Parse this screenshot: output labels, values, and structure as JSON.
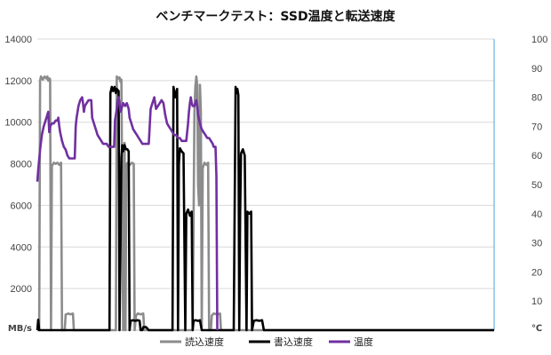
{
  "chart_data": {
    "type": "line",
    "title": "ベンチマークテスト：SSD温度と転送速度",
    "ylabel": "MB/s",
    "y2label": "℃",
    "ylim": [
      0,
      14000
    ],
    "y2lim": [
      0,
      100
    ],
    "xlim": [
      0,
      1000
    ],
    "yticks": [
      "2000",
      "4000",
      "6000",
      "8000",
      "10000",
      "12000",
      "14000"
    ],
    "y2ticks": [
      "10",
      "20",
      "30",
      "40",
      "50",
      "60",
      "70",
      "80",
      "90",
      "100"
    ],
    "grid": true,
    "legend_position": "bottom",
    "series": [
      {
        "name": "読込速度",
        "color": "#8c8c8c",
        "axis": "left",
        "points": [
          [
            0,
            0
          ],
          [
            4,
            0
          ],
          [
            6,
            12000
          ],
          [
            8,
            12200
          ],
          [
            12,
            12050
          ],
          [
            16,
            12200
          ],
          [
            20,
            12100
          ],
          [
            22,
            12200
          ],
          [
            24,
            12000
          ],
          [
            27,
            12100
          ],
          [
            28,
            12050
          ],
          [
            30,
            0
          ],
          [
            32,
            7900
          ],
          [
            36,
            8050
          ],
          [
            40,
            8000
          ],
          [
            44,
            8050
          ],
          [
            48,
            7950
          ],
          [
            52,
            8050
          ],
          [
            54,
            0
          ],
          [
            60,
            0
          ],
          [
            62,
            750
          ],
          [
            68,
            800
          ],
          [
            72,
            760
          ],
          [
            78,
            800
          ],
          [
            80,
            0
          ],
          [
            168,
            0
          ],
          [
            172,
            0
          ],
          [
            174,
            12200
          ],
          [
            178,
            12100
          ],
          [
            180,
            12150
          ],
          [
            182,
            11950
          ],
          [
            184,
            12050
          ],
          [
            188,
            0
          ],
          [
            189,
            6000
          ],
          [
            191,
            9000
          ],
          [
            193,
            0
          ],
          [
            195,
            8000
          ],
          [
            199,
            8050
          ],
          [
            203,
            7950
          ],
          [
            207,
            8050
          ],
          [
            211,
            8000
          ],
          [
            213,
            0
          ],
          [
            216,
            700
          ],
          [
            220,
            800
          ],
          [
            226,
            760
          ],
          [
            232,
            800
          ],
          [
            234,
            0
          ],
          [
            340,
            0
          ],
          [
            344,
            10500
          ],
          [
            346,
            11700
          ],
          [
            348,
            12200
          ],
          [
            350,
            11800
          ],
          [
            352,
            7000
          ],
          [
            354,
            6000
          ],
          [
            356,
            11800
          ],
          [
            358,
            10500
          ],
          [
            360,
            0
          ],
          [
            362,
            7800
          ],
          [
            366,
            8050
          ],
          [
            370,
            7950
          ],
          [
            374,
            8050
          ],
          [
            376,
            0
          ],
          [
            380,
            0
          ],
          [
            382,
            700
          ],
          [
            386,
            800
          ],
          [
            394,
            760
          ],
          [
            400,
            800
          ],
          [
            402,
            0
          ],
          [
            1000,
            0
          ]
        ]
      },
      {
        "name": "書込速度",
        "color": "#000000",
        "axis": "left",
        "points": [
          [
            0,
            0
          ],
          [
            2,
            500
          ],
          [
            4,
            0
          ],
          [
            154,
            0
          ],
          [
            158,
            0
          ],
          [
            160,
            11400
          ],
          [
            163,
            11700
          ],
          [
            166,
            11500
          ],
          [
            169,
            11700
          ],
          [
            172,
            11400
          ],
          [
            174,
            11600
          ],
          [
            178,
            11500
          ],
          [
            180,
            0
          ],
          [
            184,
            8300
          ],
          [
            186,
            8900
          ],
          [
            188,
            8600
          ],
          [
            191,
            8900
          ],
          [
            194,
            8700
          ],
          [
            197,
            8700
          ],
          [
            200,
            8600
          ],
          [
            202,
            0
          ],
          [
            204,
            450
          ],
          [
            210,
            480
          ],
          [
            214,
            450
          ],
          [
            220,
            480
          ],
          [
            224,
            450
          ],
          [
            226,
            0
          ],
          [
            230,
            0
          ],
          [
            232,
            150
          ],
          [
            238,
            150
          ],
          [
            244,
            0
          ],
          [
            292,
            0
          ],
          [
            296,
            0
          ],
          [
            298,
            11700
          ],
          [
            302,
            11200
          ],
          [
            306,
            11600
          ],
          [
            308,
            0
          ],
          [
            310,
            8000
          ],
          [
            312,
            8750
          ],
          [
            316,
            8600
          ],
          [
            320,
            8500
          ],
          [
            324,
            0
          ],
          [
            326,
            5600
          ],
          [
            330,
            5800
          ],
          [
            334,
            5500
          ],
          [
            338,
            5700
          ],
          [
            340,
            0
          ],
          [
            342,
            450
          ],
          [
            346,
            480
          ],
          [
            352,
            450
          ],
          [
            356,
            480
          ],
          [
            360,
            0
          ],
          [
            430,
            0
          ],
          [
            434,
            11700
          ],
          [
            436,
            11400
          ],
          [
            438,
            11600
          ],
          [
            440,
            11300
          ],
          [
            442,
            0
          ],
          [
            444,
            5500
          ],
          [
            446,
            8500
          ],
          [
            450,
            8700
          ],
          [
            454,
            8400
          ],
          [
            458,
            0
          ],
          [
            460,
            5700
          ],
          [
            464,
            5600
          ],
          [
            468,
            5700
          ],
          [
            470,
            0
          ],
          [
            474,
            450
          ],
          [
            480,
            480
          ],
          [
            486,
            450
          ],
          [
            492,
            480
          ],
          [
            496,
            0
          ],
          [
            1000,
            0
          ]
        ]
      },
      {
        "name": "温度",
        "color": "#7030a0",
        "axis": "right",
        "points": [
          [
            0,
            51
          ],
          [
            2,
            55
          ],
          [
            6,
            62
          ],
          [
            10,
            67
          ],
          [
            14,
            70
          ],
          [
            18,
            72
          ],
          [
            22,
            74
          ],
          [
            24,
            75
          ],
          [
            26,
            68
          ],
          [
            28,
            70
          ],
          [
            32,
            71
          ],
          [
            36,
            71
          ],
          [
            40,
            72
          ],
          [
            44,
            72
          ],
          [
            46,
            73
          ],
          [
            48,
            70
          ],
          [
            50,
            68
          ],
          [
            54,
            65
          ],
          [
            58,
            63
          ],
          [
            62,
            62
          ],
          [
            66,
            60
          ],
          [
            70,
            59
          ],
          [
            74,
            59
          ],
          [
            78,
            59
          ],
          [
            80,
            59
          ],
          [
            82,
            59
          ],
          [
            84,
            70
          ],
          [
            86,
            73
          ],
          [
            90,
            77
          ],
          [
            94,
            79
          ],
          [
            98,
            80
          ],
          [
            100,
            78
          ],
          [
            102,
            75
          ],
          [
            104,
            77
          ],
          [
            108,
            78
          ],
          [
            112,
            79
          ],
          [
            116,
            79
          ],
          [
            118,
            79
          ],
          [
            120,
            73
          ],
          [
            124,
            71
          ],
          [
            128,
            69
          ],
          [
            132,
            67
          ],
          [
            136,
            66
          ],
          [
            140,
            65
          ],
          [
            144,
            64
          ],
          [
            148,
            64
          ],
          [
            152,
            64
          ],
          [
            156,
            63
          ],
          [
            160,
            63
          ],
          [
            164,
            63
          ],
          [
            166,
            63
          ],
          [
            168,
            63
          ],
          [
            170,
            72
          ],
          [
            174,
            76
          ],
          [
            176,
            79
          ],
          [
            178,
            80
          ],
          [
            180,
            78
          ],
          [
            182,
            75
          ],
          [
            184,
            76
          ],
          [
            188,
            78
          ],
          [
            192,
            77
          ],
          [
            196,
            78
          ],
          [
            200,
            76
          ],
          [
            202,
            73
          ],
          [
            206,
            71
          ],
          [
            210,
            69
          ],
          [
            214,
            68
          ],
          [
            218,
            67
          ],
          [
            222,
            66
          ],
          [
            226,
            65
          ],
          [
            230,
            64
          ],
          [
            234,
            64
          ],
          [
            238,
            64
          ],
          [
            240,
            64
          ],
          [
            244,
            64
          ],
          [
            248,
            76
          ],
          [
            250,
            77
          ],
          [
            252,
            78
          ],
          [
            254,
            79
          ],
          [
            256,
            80
          ],
          [
            258,
            78
          ],
          [
            260,
            76
          ],
          [
            264,
            77
          ],
          [
            268,
            78
          ],
          [
            272,
            79
          ],
          [
            276,
            78
          ],
          [
            280,
            74
          ],
          [
            284,
            71
          ],
          [
            288,
            70
          ],
          [
            292,
            69
          ],
          [
            296,
            68
          ],
          [
            300,
            67
          ],
          [
            304,
            67
          ],
          [
            308,
            66
          ],
          [
            312,
            66
          ],
          [
            316,
            65
          ],
          [
            320,
            65
          ],
          [
            324,
            65
          ],
          [
            326,
            65
          ],
          [
            330,
            71
          ],
          [
            332,
            75
          ],
          [
            334,
            78
          ],
          [
            336,
            80
          ],
          [
            338,
            78
          ],
          [
            340,
            77
          ],
          [
            344,
            77
          ],
          [
            348,
            79
          ],
          [
            350,
            77
          ],
          [
            352,
            74
          ],
          [
            356,
            71
          ],
          [
            360,
            69
          ],
          [
            364,
            68
          ],
          [
            368,
            67
          ],
          [
            372,
            66
          ],
          [
            376,
            66
          ],
          [
            380,
            65
          ],
          [
            384,
            64
          ],
          [
            386,
            63
          ],
          [
            388,
            63
          ],
          [
            390,
            63
          ],
          [
            392,
            53
          ],
          [
            394,
            0
          ]
        ]
      }
    ]
  }
}
